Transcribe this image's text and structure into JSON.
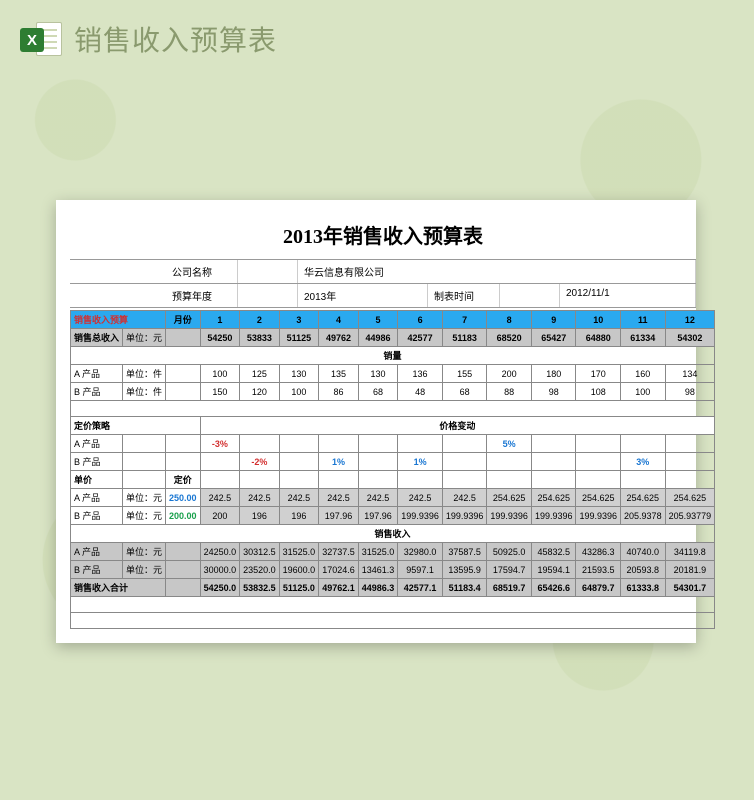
{
  "page_header": "销售收入预算表",
  "excel_badge": "X",
  "title": "2013年销售收入预算表",
  "meta": {
    "company_label": "公司名称",
    "company_value": "华云信息有限公司",
    "year_label": "预算年度",
    "year_value": "2013年",
    "date_label": "制表时间",
    "date_value": "2012/11/1"
  },
  "budget_label": "销售收入预算",
  "month_label": "月份",
  "months": [
    "1",
    "2",
    "3",
    "4",
    "5",
    "6",
    "7",
    "8",
    "9",
    "10",
    "11",
    "12"
  ],
  "total_income_label": "销售总收入",
  "unit_yuan": "单位：元",
  "unit_piece": "单位：件",
  "total_income": [
    "54250",
    "53833",
    "51125",
    "49762",
    "44986",
    "42577",
    "51183",
    "68520",
    "65427",
    "64880",
    "61334",
    "54302"
  ],
  "sections": {
    "volume": "销量",
    "pricing": "定价策略",
    "price_change": "价格变动",
    "unit_price": "单价",
    "base_price": "定价",
    "revenue": "销售收入",
    "revenue_total": "销售收入合计"
  },
  "products": {
    "a_label": "A 产品",
    "b_label": "B 产品"
  },
  "volume": {
    "a": [
      "100",
      "125",
      "130",
      "135",
      "130",
      "136",
      "155",
      "200",
      "180",
      "170",
      "160",
      "134"
    ],
    "b": [
      "150",
      "120",
      "100",
      "86",
      "68",
      "48",
      "68",
      "88",
      "98",
      "108",
      "100",
      "98"
    ]
  },
  "price_change": {
    "a": [
      "-3%",
      "",
      "",
      "",
      "",
      "",
      "",
      "5%",
      "",
      "",
      "",
      ""
    ],
    "b": [
      "",
      "-2%",
      "",
      "1%",
      "",
      "1%",
      "",
      "",
      "",
      "",
      "3%",
      ""
    ]
  },
  "base_price": {
    "a": "250.00",
    "b": "200.00"
  },
  "unit_price": {
    "a": [
      "242.5",
      "242.5",
      "242.5",
      "242.5",
      "242.5",
      "242.5",
      "242.5",
      "254.625",
      "254.625",
      "254.625",
      "254.625",
      "254.625"
    ],
    "b": [
      "200",
      "196",
      "196",
      "197.96",
      "197.96",
      "199.9396",
      "199.9396",
      "199.9396",
      "199.9396",
      "199.9396",
      "205.9378",
      "205.93779"
    ]
  },
  "revenue": {
    "a": [
      "24250.0",
      "30312.5",
      "31525.0",
      "32737.5",
      "31525.0",
      "32980.0",
      "37587.5",
      "50925.0",
      "45832.5",
      "43286.3",
      "40740.0",
      "34119.8"
    ],
    "b": [
      "30000.0",
      "23520.0",
      "19600.0",
      "17024.6",
      "13461.3",
      "9597.1",
      "13595.9",
      "17594.7",
      "19594.1",
      "21593.5",
      "20593.8",
      "20181.9"
    ],
    "total": [
      "54250.0",
      "53832.5",
      "51125.0",
      "49762.1",
      "44986.3",
      "42577.1",
      "51183.4",
      "68519.7",
      "65426.6",
      "64879.7",
      "61333.8",
      "54301.7"
    ]
  },
  "colors": {
    "background": "#d9e4c4",
    "header_blue": "#2aa9ef",
    "gray_fill": "#c7c7c7",
    "red": "#d32f2f",
    "blue": "#1976d2",
    "green": "#18a04b"
  }
}
